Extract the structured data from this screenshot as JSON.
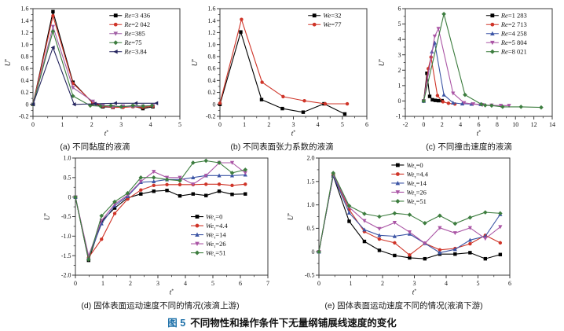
{
  "figure": {
    "caption_prefix": "图 5",
    "caption_text": "不同物性和操作条件下无量纲铺展线速度的变化",
    "accent_color": "#1b6fa8",
    "axis_color": "#3a3a3a",
    "text_color": "#111111"
  },
  "chart_data": [
    {
      "id": "a",
      "type": "line",
      "subcaption": "(a) 不同黏度的液滴",
      "xlabel": "t*",
      "ylabel": "U*",
      "xlim": [
        0,
        5
      ],
      "ylim": [
        -0.2,
        1.6
      ],
      "xticks": [
        "0",
        "1",
        "2",
        "3",
        "4",
        "5"
      ],
      "yticks": [
        "-0.2",
        "0",
        "0.2",
        "0.4",
        "0.6",
        "0.8",
        "1.0",
        "1.2",
        "1.4",
        "1.6"
      ],
      "legend": {
        "fx": 0.52,
        "fy": 0.02
      },
      "series": [
        {
          "name": "Re=3 436",
          "color": "#000000",
          "marker": "square",
          "x": [
            0,
            0.68,
            1.36,
            2.04,
            2.38,
            2.72,
            3.06,
            3.4,
            3.74,
            4.08
          ],
          "y": [
            0,
            1.55,
            0.37,
            0.02,
            -0.04,
            -0.05,
            -0.04,
            -0.03,
            -0.07,
            -0.04
          ]
        },
        {
          "name": "Re=2 042",
          "color": "#cf3428",
          "marker": "circle",
          "x": [
            0,
            0.68,
            1.36,
            2.04,
            2.38,
            2.72,
            3.06,
            3.4,
            3.74,
            4.08
          ],
          "y": [
            0,
            1.48,
            0.35,
            0.03,
            -0.03,
            -0.05,
            -0.05,
            -0.04,
            -0.05,
            -0.03
          ]
        },
        {
          "name": "Re=385",
          "color": "#a05fa5",
          "marker": "triangle-down",
          "x": [
            0,
            0.68,
            1.36,
            2.04,
            2.38,
            2.72,
            3.06,
            3.4,
            3.74,
            4.08
          ],
          "y": [
            0,
            1.3,
            0.28,
            0.05,
            -0.02,
            -0.04,
            -0.03,
            -0.04,
            -0.03,
            -0.02
          ]
        },
        {
          "name": "Re=75",
          "color": "#3d7d3f",
          "marker": "diamond",
          "x": [
            0,
            0.68,
            1.36,
            1.95,
            2.3,
            2.65,
            3.0,
            3.4,
            3.75,
            4.05
          ],
          "y": [
            0,
            1.22,
            0.14,
            -0.02,
            -0.03,
            -0.02,
            -0.04,
            -0.02,
            -0.03,
            -0.02
          ]
        },
        {
          "name": "Re=3.84",
          "color": "#24245e",
          "marker": "triangle-left",
          "x": [
            0,
            0.68,
            1.4,
            2.1,
            2.8,
            3.5,
            4.2
          ],
          "y": [
            0,
            0.95,
            0,
            0.01,
            0.02,
            0.02,
            0.02
          ]
        }
      ]
    },
    {
      "id": "b",
      "type": "line",
      "subcaption": "(b) 不同表面张力系数的液滴",
      "xlabel": "t*",
      "ylabel": "U*",
      "xlim": [
        0,
        6
      ],
      "ylim": [
        -0.2,
        1.6
      ],
      "xticks": [
        "0",
        "1",
        "2",
        "3",
        "4",
        "5",
        "6"
      ],
      "yticks": [
        "-0.2",
        "0",
        "0.2",
        "0.4",
        "0.6",
        "0.8",
        "1.0",
        "1.2",
        "1.4",
        "1.6"
      ],
      "legend": {
        "fx": 0.6,
        "fy": 0.02
      },
      "series": [
        {
          "name": "We=32",
          "color": "#000000",
          "marker": "square",
          "x": [
            0,
            0.85,
            1.7,
            2.55,
            3.4,
            4.25,
            5.1
          ],
          "y": [
            0,
            1.21,
            0.08,
            -0.07,
            -0.13,
            0.01,
            -0.16
          ]
        },
        {
          "name": "We=77",
          "color": "#cf3428",
          "marker": "circle",
          "x": [
            0,
            0.88,
            1.72,
            2.58,
            3.45,
            4.3,
            5.2
          ],
          "y": [
            0.02,
            1.42,
            0.37,
            0.13,
            0.06,
            0.01,
            0.01
          ]
        }
      ]
    },
    {
      "id": "c",
      "type": "line",
      "subcaption": "(c) 不同撞击速度的液滴",
      "xlabel": "t*",
      "ylabel": "U*",
      "xlim": [
        -2,
        14
      ],
      "ylim": [
        -1,
        6
      ],
      "xticks": [
        "-2",
        "0",
        "2",
        "4",
        "6",
        "8",
        "10",
        "12",
        "14"
      ],
      "yticks": [
        "-1",
        "0",
        "1",
        "2",
        "3",
        "4",
        "5",
        "6"
      ],
      "legend": {
        "fx": 0.55,
        "fy": 0.02
      },
      "series": [
        {
          "name": "Re=1 283",
          "color": "#000000",
          "marker": "square",
          "x": [
            0,
            0.35,
            0.65,
            0.95,
            1.25,
            1.6,
            2.0
          ],
          "y": [
            0,
            1.8,
            0.3,
            0.08,
            0.04,
            0.02,
            0.02
          ]
        },
        {
          "name": "Re=2 713",
          "color": "#cf3428",
          "marker": "circle",
          "x": [
            0,
            0.5,
            0.8,
            1.5,
            2.1,
            2.7,
            3.4
          ],
          "y": [
            0,
            2.1,
            2.85,
            0.35,
            -0.05,
            -0.15,
            -0.2
          ]
        },
        {
          "name": "Re=4 258",
          "color": "#3c55a5",
          "marker": "triangle-up",
          "x": [
            0,
            0.9,
            1.2,
            2.2,
            3.2,
            4.2,
            5.2,
            6.2
          ],
          "y": [
            0,
            3.2,
            3.78,
            0.4,
            -0.12,
            -0.18,
            -0.2,
            -0.22
          ]
        },
        {
          "name": "Re=5 804",
          "color": "#aa55a5",
          "marker": "triangle-down",
          "x": [
            0,
            1.2,
            1.6,
            3.2,
            4.4,
            5.4,
            6.4,
            7.4,
            8.4,
            9.3
          ],
          "y": [
            0,
            4.2,
            4.7,
            0.5,
            -0.12,
            -0.2,
            -0.25,
            -0.28,
            -0.3,
            -0.3
          ]
        },
        {
          "name": "Re=8 021",
          "color": "#3d7d3f",
          "marker": "diamond",
          "x": [
            0,
            2.2,
            4.5,
            6.3,
            6.7,
            7.4,
            8.6,
            10.6,
            12.8
          ],
          "y": [
            0,
            5.65,
            0.4,
            -0.22,
            -0.28,
            -0.3,
            -0.38,
            -0.38,
            -0.42
          ]
        }
      ]
    },
    {
      "id": "d",
      "type": "line",
      "subcaption": "(d) 固体表面运动速度不同的情况(液滴上游)",
      "xlabel": "t*",
      "ylabel": "U*",
      "xlim": [
        0,
        7
      ],
      "ylim": [
        -2,
        1
      ],
      "xticks": [
        "0",
        "1",
        "2",
        "3",
        "4",
        "5",
        "6",
        "7"
      ],
      "yticks": [
        "-2.0",
        "-1.5",
        "-1.0",
        "-0.5",
        "0",
        "0.5",
        "1.0"
      ],
      "legend": {
        "fx": 0.6,
        "fy": 0.46
      },
      "series": [
        {
          "name": "We_τ=0",
          "color": "#000000",
          "marker": "square",
          "x": [
            0,
            0.48,
            0.95,
            1.43,
            1.9,
            2.38,
            2.85,
            3.33,
            3.8,
            4.28,
            4.75,
            5.23,
            5.7,
            6.18
          ],
          "y": [
            0,
            -1.62,
            -0.62,
            -0.28,
            -0.02,
            0.08,
            0.15,
            0.17,
            0.03,
            0.08,
            0.04,
            0.15,
            0.07,
            0.08
          ]
        },
        {
          "name": "We_τ=4.4",
          "color": "#cf3428",
          "marker": "circle",
          "x": [
            0,
            0.48,
            0.95,
            1.43,
            1.9,
            2.38,
            2.85,
            3.33,
            3.8,
            4.28,
            4.75,
            5.23,
            5.7,
            6.18
          ],
          "y": [
            0,
            -1.55,
            -1.08,
            -0.42,
            -0.05,
            0.18,
            0.3,
            0.32,
            0.32,
            0.32,
            0.33,
            0.33,
            0.3,
            0.33
          ]
        },
        {
          "name": "We_τ=14",
          "color": "#3c55a5",
          "marker": "triangle-up",
          "x": [
            0,
            0.48,
            0.95,
            1.43,
            1.9,
            2.38,
            2.85,
            3.33,
            3.8,
            4.28,
            4.75,
            5.23,
            5.7,
            6.18
          ],
          "y": [
            0,
            -1.55,
            -0.68,
            -0.22,
            0.02,
            0.38,
            0.4,
            0.45,
            0.45,
            0.5,
            0.55,
            0.55,
            0.55,
            0.57
          ]
        },
        {
          "name": "We_τ=26",
          "color": "#aa55a5",
          "marker": "triangle-down",
          "x": [
            0,
            0.48,
            0.95,
            1.43,
            1.9,
            2.38,
            2.85,
            3.33,
            3.8,
            4.28,
            4.75,
            5.23,
            5.7,
            6.18
          ],
          "y": [
            0,
            -1.5,
            -0.6,
            -0.18,
            0.05,
            0.4,
            0.65,
            0.5,
            0.5,
            0.33,
            0.55,
            0.88,
            0.88,
            0.62
          ]
        },
        {
          "name": "We_τ=51",
          "color": "#3d7d3f",
          "marker": "diamond",
          "x": [
            0,
            0.48,
            0.95,
            1.43,
            1.9,
            2.38,
            2.85,
            3.33,
            3.8,
            4.28,
            4.75,
            5.23,
            5.7,
            6.18
          ],
          "y": [
            0,
            -1.6,
            -0.48,
            -0.12,
            0.1,
            0.5,
            0.5,
            0.45,
            0.42,
            0.88,
            0.93,
            0.88,
            0.62,
            0.7
          ]
        }
      ]
    },
    {
      "id": "e",
      "type": "line",
      "subcaption": "(e) 固体表面运动速度不同的情况(液滴下游)",
      "xlabel": "t*",
      "ylabel": "U*",
      "xlim": [
        0,
        6
      ],
      "ylim": [
        -0.5,
        2
      ],
      "xticks": [
        "0",
        "1",
        "2",
        "3",
        "4",
        "5",
        "6"
      ],
      "yticks": [
        "-0.5",
        "0",
        "0.5",
        "1.0",
        "1.5",
        "2.0"
      ],
      "legend": {
        "fx": 0.38,
        "fy": 0.02
      },
      "series": [
        {
          "name": "We_τ=0",
          "color": "#000000",
          "marker": "square",
          "x": [
            0,
            0.45,
            0.95,
            1.43,
            1.9,
            2.38,
            2.85,
            3.33,
            3.8,
            4.28,
            4.75,
            5.23,
            5.7
          ],
          "y": [
            0,
            1.62,
            0.65,
            0.22,
            0.03,
            -0.08,
            -0.13,
            -0.15,
            -0.05,
            -0.05,
            -0.02,
            -0.15,
            -0.06
          ]
        },
        {
          "name": "We_τ=4.4",
          "color": "#cf3428",
          "marker": "circle",
          "x": [
            0,
            0.45,
            0.95,
            1.43,
            1.9,
            2.38,
            2.85,
            3.33,
            3.8,
            4.28,
            4.75,
            5.23,
            5.7
          ],
          "y": [
            0,
            1.65,
            0.9,
            0.43,
            0.27,
            0.19,
            -0.07,
            0.18,
            0.04,
            0.07,
            0.17,
            0.35,
            0.19
          ]
        },
        {
          "name": "We_τ=14",
          "color": "#3c55a5",
          "marker": "triangle-up",
          "x": [
            0,
            0.45,
            0.95,
            1.43,
            1.9,
            2.38,
            2.85,
            3.33,
            3.8,
            4.28,
            4.75,
            5.23,
            5.7
          ],
          "y": [
            0,
            1.63,
            0.83,
            0.47,
            0.35,
            0.33,
            0.38,
            0.18,
            -0.02,
            0.05,
            0.25,
            0.33,
            0.8
          ]
        },
        {
          "name": "We_τ=26",
          "color": "#aa55a5",
          "marker": "triangle-down",
          "x": [
            0,
            0.45,
            0.95,
            1.43,
            1.9,
            2.38,
            2.85,
            3.33,
            3.8,
            4.28,
            4.75,
            5.23,
            5.7
          ],
          "y": [
            0,
            1.65,
            0.95,
            0.66,
            0.49,
            0.62,
            0.42,
            0.18,
            0.51,
            0.4,
            0.51,
            0.28,
            0.53
          ]
        },
        {
          "name": "We_τ=51",
          "color": "#3d7d3f",
          "marker": "diamond",
          "x": [
            0,
            0.45,
            0.95,
            1.43,
            1.9,
            2.38,
            2.85,
            3.33,
            3.8,
            4.28,
            4.75,
            5.23,
            5.7
          ],
          "y": [
            0,
            1.68,
            0.98,
            0.81,
            0.75,
            0.82,
            0.79,
            0.61,
            0.77,
            0.6,
            0.73,
            0.84,
            0.82
          ]
        }
      ]
    }
  ]
}
